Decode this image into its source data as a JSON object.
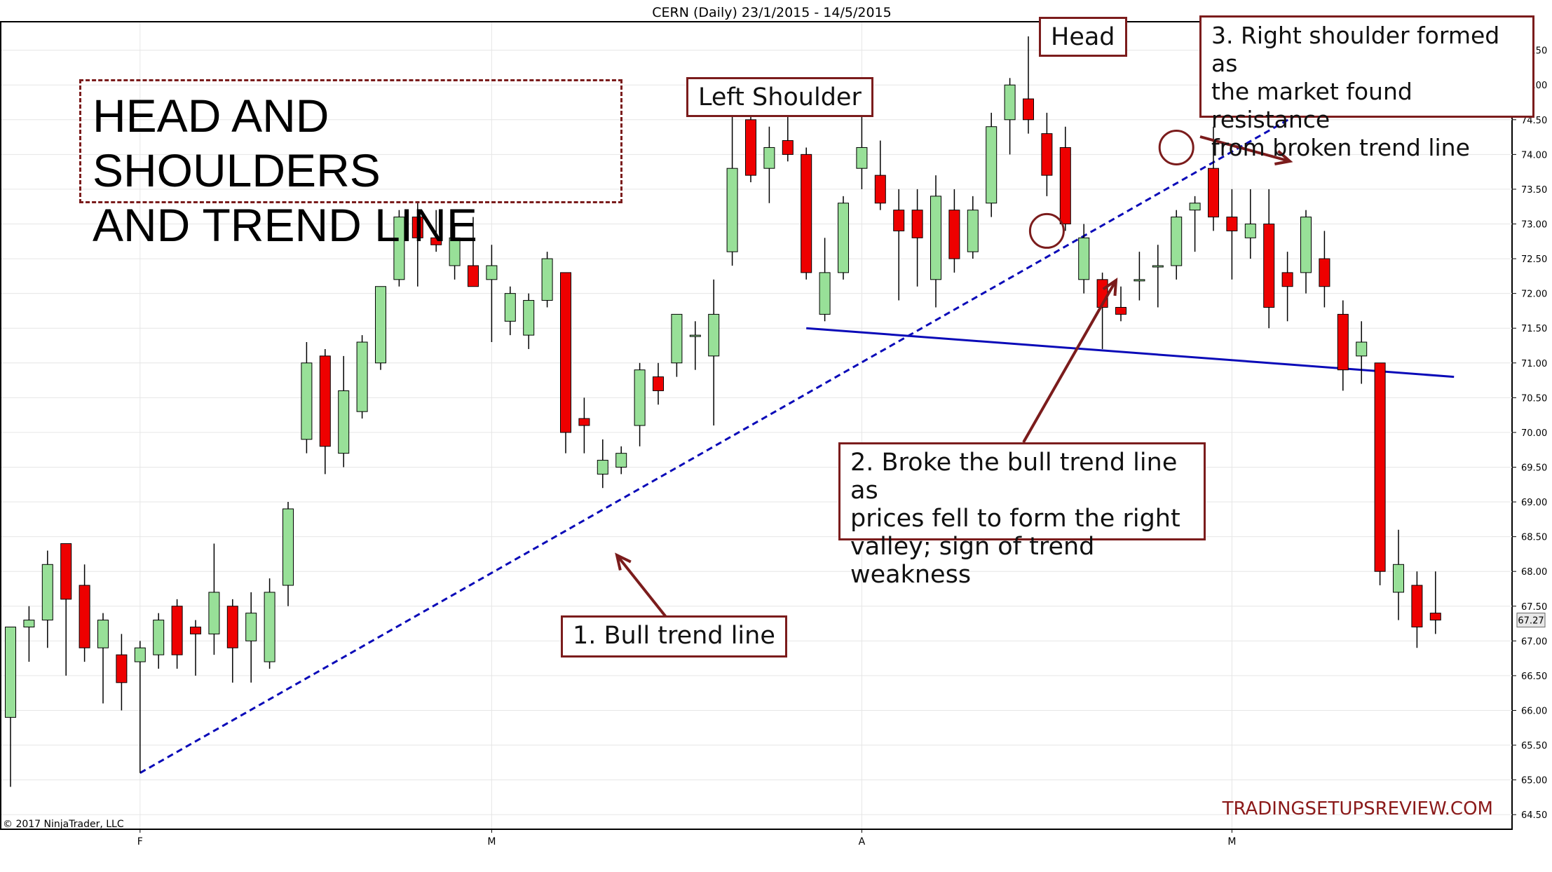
{
  "chart_data": {
    "type": "candlestick",
    "title": "CERN (Daily)  23/1/2015 - 14/5/2015",
    "ylim": [
      64.3,
      75.9
    ],
    "y_ticks": [
      "64.50",
      "65.00",
      "65.50",
      "66.00",
      "66.50",
      "67.00",
      "67.50",
      "68.00",
      "68.50",
      "69.00",
      "69.50",
      "70.00",
      "70.50",
      "71.00",
      "71.50",
      "72.00",
      "72.50",
      "73.00",
      "73.50",
      "74.00",
      "74.50",
      "75.00",
      "75.50"
    ],
    "x_ticks": [
      {
        "label": "F",
        "index": 7
      },
      {
        "label": "M",
        "index": 26
      },
      {
        "label": "A",
        "index": 46
      },
      {
        "label": "M",
        "index": 66
      }
    ],
    "last_price": "67.27",
    "candles": [
      {
        "o": 65.9,
        "h": 67.2,
        "l": 64.9,
        "c": 67.2
      },
      {
        "o": 67.2,
        "h": 67.5,
        "l": 66.7,
        "c": 67.3
      },
      {
        "o": 67.3,
        "h": 68.3,
        "l": 66.9,
        "c": 68.1
      },
      {
        "o": 68.4,
        "h": 68.4,
        "l": 66.5,
        "c": 67.6
      },
      {
        "o": 67.8,
        "h": 68.1,
        "l": 66.7,
        "c": 66.9
      },
      {
        "o": 66.9,
        "h": 67.4,
        "l": 66.1,
        "c": 67.3
      },
      {
        "o": 66.8,
        "h": 67.1,
        "l": 66.0,
        "c": 66.4
      },
      {
        "o": 66.7,
        "h": 67.0,
        "l": 65.1,
        "c": 66.9
      },
      {
        "o": 66.8,
        "h": 67.4,
        "l": 66.6,
        "c": 67.3
      },
      {
        "o": 67.5,
        "h": 67.6,
        "l": 66.6,
        "c": 66.8
      },
      {
        "o": 67.2,
        "h": 67.3,
        "l": 66.5,
        "c": 67.1
      },
      {
        "o": 67.1,
        "h": 68.4,
        "l": 66.8,
        "c": 67.7
      },
      {
        "o": 67.5,
        "h": 67.6,
        "l": 66.4,
        "c": 66.9
      },
      {
        "o": 67.0,
        "h": 67.7,
        "l": 66.4,
        "c": 67.4
      },
      {
        "o": 66.7,
        "h": 67.9,
        "l": 66.6,
        "c": 67.7
      },
      {
        "o": 67.8,
        "h": 69.0,
        "l": 67.5,
        "c": 68.9
      },
      {
        "o": 69.9,
        "h": 71.3,
        "l": 69.7,
        "c": 71.0
      },
      {
        "o": 71.1,
        "h": 71.2,
        "l": 69.4,
        "c": 69.8
      },
      {
        "o": 69.7,
        "h": 71.1,
        "l": 69.5,
        "c": 70.6
      },
      {
        "o": 70.3,
        "h": 71.4,
        "l": 70.2,
        "c": 71.3
      },
      {
        "o": 71.0,
        "h": 72.1,
        "l": 70.9,
        "c": 72.1
      },
      {
        "o": 72.2,
        "h": 73.2,
        "l": 72.1,
        "c": 73.1
      },
      {
        "o": 73.1,
        "h": 73.3,
        "l": 72.1,
        "c": 72.8
      },
      {
        "o": 72.8,
        "h": 73.2,
        "l": 72.6,
        "c": 72.7
      },
      {
        "o": 72.4,
        "h": 73.0,
        "l": 72.2,
        "c": 72.8
      },
      {
        "o": 72.4,
        "h": 73.1,
        "l": 72.1,
        "c": 72.1
      },
      {
        "o": 72.2,
        "h": 72.7,
        "l": 71.3,
        "c": 72.4
      },
      {
        "o": 71.6,
        "h": 72.1,
        "l": 71.4,
        "c": 72.0
      },
      {
        "o": 71.4,
        "h": 72.0,
        "l": 71.2,
        "c": 71.9
      },
      {
        "o": 71.9,
        "h": 72.6,
        "l": 71.8,
        "c": 72.5
      },
      {
        "o": 72.3,
        "h": 72.3,
        "l": 69.7,
        "c": 70.0
      },
      {
        "o": 70.2,
        "h": 70.5,
        "l": 69.7,
        "c": 70.1
      },
      {
        "o": 69.4,
        "h": 69.9,
        "l": 69.2,
        "c": 69.6
      },
      {
        "o": 69.5,
        "h": 69.8,
        "l": 69.4,
        "c": 69.7
      },
      {
        "o": 70.1,
        "h": 71.0,
        "l": 69.8,
        "c": 70.9
      },
      {
        "o": 70.8,
        "h": 71.0,
        "l": 70.4,
        "c": 70.6
      },
      {
        "o": 71.0,
        "h": 71.7,
        "l": 70.8,
        "c": 71.7
      },
      {
        "o": 71.4,
        "h": 71.6,
        "l": 70.9,
        "c": 71.4
      },
      {
        "o": 71.1,
        "h": 72.2,
        "l": 70.1,
        "c": 71.7
      },
      {
        "o": 72.6,
        "h": 74.6,
        "l": 72.4,
        "c": 73.8
      },
      {
        "o": 74.5,
        "h": 74.9,
        "l": 73.6,
        "c": 73.7
      },
      {
        "o": 73.8,
        "h": 74.4,
        "l": 73.3,
        "c": 74.1
      },
      {
        "o": 74.2,
        "h": 74.6,
        "l": 73.9,
        "c": 74.0
      },
      {
        "o": 74.0,
        "h": 74.1,
        "l": 72.2,
        "c": 72.3
      },
      {
        "o": 71.7,
        "h": 72.8,
        "l": 71.6,
        "c": 72.3
      },
      {
        "o": 72.3,
        "h": 73.4,
        "l": 72.2,
        "c": 73.3
      },
      {
        "o": 73.8,
        "h": 74.6,
        "l": 73.5,
        "c": 74.1
      },
      {
        "o": 73.7,
        "h": 74.2,
        "l": 73.2,
        "c": 73.3
      },
      {
        "o": 73.2,
        "h": 73.5,
        "l": 71.9,
        "c": 72.9
      },
      {
        "o": 73.2,
        "h": 73.5,
        "l": 72.1,
        "c": 72.8
      },
      {
        "o": 72.2,
        "h": 73.7,
        "l": 71.8,
        "c": 73.4
      },
      {
        "o": 73.2,
        "h": 73.5,
        "l": 72.3,
        "c": 72.5
      },
      {
        "o": 72.6,
        "h": 73.4,
        "l": 72.5,
        "c": 73.2
      },
      {
        "o": 73.3,
        "h": 74.6,
        "l": 73.1,
        "c": 74.4
      },
      {
        "o": 74.5,
        "h": 75.1,
        "l": 74.0,
        "c": 75.0
      },
      {
        "o": 74.8,
        "h": 75.7,
        "l": 74.3,
        "c": 74.5
      },
      {
        "o": 74.3,
        "h": 74.6,
        "l": 73.4,
        "c": 73.7
      },
      {
        "o": 74.1,
        "h": 74.4,
        "l": 72.9,
        "c": 73.0
      },
      {
        "o": 72.2,
        "h": 73.0,
        "l": 72.0,
        "c": 72.8
      },
      {
        "o": 72.2,
        "h": 72.3,
        "l": 71.2,
        "c": 71.8
      },
      {
        "o": 71.8,
        "h": 72.1,
        "l": 71.6,
        "c": 71.7
      },
      {
        "o": 72.2,
        "h": 72.6,
        "l": 71.9,
        "c": 72.2
      },
      {
        "o": 72.4,
        "h": 72.7,
        "l": 71.8,
        "c": 72.4
      },
      {
        "o": 72.4,
        "h": 73.2,
        "l": 72.2,
        "c": 73.1
      },
      {
        "o": 73.2,
        "h": 73.4,
        "l": 72.6,
        "c": 73.3
      },
      {
        "o": 73.8,
        "h": 74.4,
        "l": 72.9,
        "c": 73.1
      },
      {
        "o": 73.1,
        "h": 73.5,
        "l": 72.2,
        "c": 72.9
      },
      {
        "o": 72.8,
        "h": 73.5,
        "l": 72.5,
        "c": 73.0
      },
      {
        "o": 73.0,
        "h": 73.5,
        "l": 71.5,
        "c": 71.8
      },
      {
        "o": 72.3,
        "h": 72.6,
        "l": 71.6,
        "c": 72.1
      },
      {
        "o": 72.3,
        "h": 73.2,
        "l": 72.0,
        "c": 73.1
      },
      {
        "o": 72.5,
        "h": 72.9,
        "l": 71.8,
        "c": 72.1
      },
      {
        "o": 71.7,
        "h": 71.9,
        "l": 70.6,
        "c": 70.9
      },
      {
        "o": 71.1,
        "h": 71.6,
        "l": 70.7,
        "c": 71.3
      },
      {
        "o": 71.0,
        "h": 71.0,
        "l": 67.8,
        "c": 68.0
      },
      {
        "o": 67.7,
        "h": 68.6,
        "l": 67.3,
        "c": 68.1
      },
      {
        "o": 67.8,
        "h": 68.0,
        "l": 66.9,
        "c": 67.2
      },
      {
        "o": 67.4,
        "h": 68.0,
        "l": 67.1,
        "c": 67.3
      }
    ],
    "trend_lines": [
      {
        "name": "bull-trend-line",
        "style": "dashed",
        "from": {
          "index": 7,
          "price": 65.1
        },
        "to": {
          "index": 73,
          "price": 75.1
        }
      },
      {
        "name": "neckline",
        "style": "solid",
        "from": {
          "index": 43,
          "price": 71.5
        },
        "to": {
          "index": 78,
          "price": 70.8
        }
      }
    ],
    "marker_circles": [
      {
        "index": 56,
        "price": 72.9
      },
      {
        "index": 63,
        "price": 74.1
      }
    ]
  },
  "title_box": {
    "line1": "HEAD AND SHOULDERS",
    "line2": "AND TREND LINE"
  },
  "labels": {
    "head": "Head",
    "left_shoulder": "Left Shoulder",
    "note1": "1. Bull trend line",
    "note2_l1": "2. Broke the bull trend line as",
    "note2_l2": "prices fell to form the right",
    "note2_l3": "valley; sign of trend weakness",
    "note3_l1": "3. Right shoulder formed as",
    "note3_l2": "the market found resistance",
    "note3_l3": "from broken trend line"
  },
  "footer": {
    "copyright": "© 2017 NinjaTrader, LLC",
    "watermark": "TRADINGSETUPSREVIEW.COM"
  },
  "colors": {
    "up": "#98e098",
    "down": "#ee0000",
    "trend": "#0a0ab8",
    "annotation": "#7b1c1c",
    "watermark": "#8b1a1a"
  }
}
